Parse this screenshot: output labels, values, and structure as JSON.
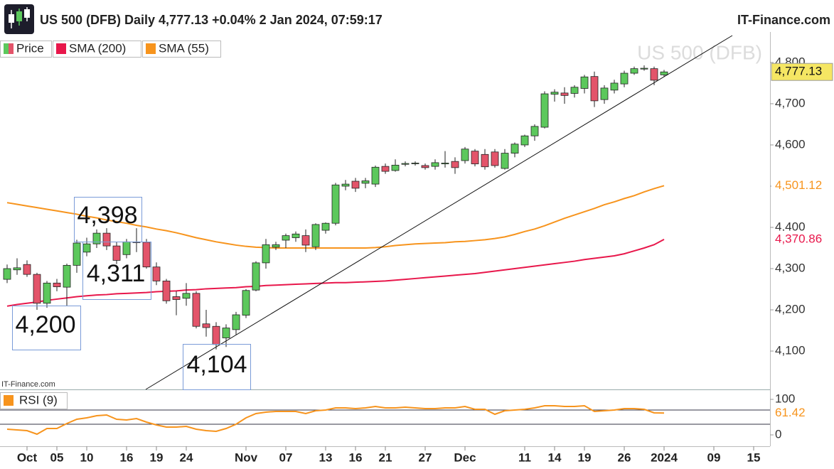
{
  "header": {
    "title": "US 500 (DFB) Daily 4,777.13 +0.04% 2 Jan 2024, 07:59:17",
    "brand": "IT-Finance.com"
  },
  "chart_data": [
    {
      "type": "candlestick",
      "watermark": "US 500 (DFB)",
      "source": "IT-Finance.com",
      "categories": [
        null,
        null,
        "Oct",
        null,
        null,
        "05",
        null,
        null,
        "10",
        null,
        null,
        null,
        "16",
        null,
        null,
        "19",
        null,
        null,
        "24",
        null,
        null,
        null,
        null,
        null,
        "Nov",
        null,
        null,
        null,
        "07",
        null,
        null,
        null,
        "13",
        null,
        null,
        "16",
        null,
        null,
        "21",
        null,
        null,
        null,
        "27",
        null,
        null,
        null,
        "Dec",
        null,
        null,
        null,
        null,
        null,
        "11",
        null,
        null,
        "14",
        null,
        null,
        "19",
        null,
        null,
        null,
        "26",
        null,
        null,
        null,
        "2024",
        null,
        null,
        null,
        null,
        "09",
        null,
        null,
        null,
        "15",
        null
      ],
      "series": [
        {
          "name": "Price",
          "type": "candlestick",
          "up_color": "#5cc85c",
          "down_color": "#e3546a",
          "color": "#f5e663",
          "value_label": "4,777.13",
          "open": [
            4274,
            4297,
            4310,
            4286,
            4216,
            4265,
            4255,
            4308,
            4340,
            4360,
            4386,
            4355,
            4334,
            4365,
            4364,
            4304,
            4270,
            4232,
            4228,
            4240,
            4166,
            4160,
            4132,
            4152,
            4187,
            4248,
            4314,
            4352,
            4369,
            4375,
            4380,
            4353,
            4393,
            4410,
            4500,
            4512,
            4507,
            4505,
            4548,
            4538,
            4553,
            4555,
            4550,
            4548,
            4554,
            4560,
            4562,
            4585,
            4577,
            4583,
            4543,
            4580,
            4600,
            4622,
            4643,
            4723,
            4726,
            4725,
            4737,
            4766,
            4710,
            4733,
            4748,
            4774,
            4784,
            4785,
            4770,
            null,
            null,
            null,
            null,
            null,
            null,
            null,
            null,
            null,
            null
          ],
          "high": [
            4310,
            4325,
            4320,
            4290,
            4270,
            4275,
            4312,
            4370,
            4375,
            4395,
            4398,
            4365,
            4372,
            4398,
            4372,
            4315,
            4275,
            4245,
            4265,
            4245,
            4200,
            4170,
            4165,
            4195,
            4250,
            4318,
            4372,
            4365,
            4385,
            4390,
            4395,
            4410,
            4412,
            4508,
            4515,
            4520,
            4520,
            4550,
            4555,
            4565,
            4560,
            4560,
            4555,
            4565,
            4585,
            4570,
            4595,
            4590,
            4590,
            4590,
            4590,
            4606,
            4625,
            4650,
            4730,
            4735,
            4740,
            4745,
            4770,
            4778,
            4745,
            4758,
            4780,
            4790,
            4793,
            4790,
            4782,
            null,
            null,
            null,
            null,
            null,
            null,
            null,
            null,
            null,
            null
          ],
          "low": [
            4265,
            4285,
            4280,
            4200,
            4205,
            4245,
            4210,
            4290,
            4330,
            4350,
            4345,
            4311,
            4325,
            4340,
            4300,
            4260,
            4215,
            4187,
            4210,
            4155,
            4135,
            4104,
            4110,
            4140,
            4180,
            4245,
            4300,
            4345,
            4350,
            4365,
            4340,
            4345,
            4385,
            4405,
            4490,
            4486,
            4495,
            4498,
            4530,
            4535,
            4548,
            4550,
            4540,
            4540,
            4545,
            4530,
            4555,
            4548,
            4540,
            4545,
            4540,
            4570,
            4595,
            4610,
            4640,
            4705,
            4700,
            4715,
            4725,
            4692,
            4700,
            4725,
            4740,
            4770,
            4780,
            4745,
            4765,
            null,
            null,
            null,
            null,
            null,
            null,
            null,
            null,
            null,
            null
          ],
          "close": [
            4300,
            4302,
            4286,
            4216,
            4265,
            4256,
            4308,
            4362,
            4360,
            4386,
            4355,
            4320,
            4365,
            4363,
            4304,
            4270,
            4222,
            4225,
            4240,
            4160,
            4157,
            4116,
            4156,
            4188,
            4247,
            4314,
            4358,
            4358,
            4380,
            4384,
            4357,
            4407,
            4410,
            4503,
            4505,
            4495,
            4513,
            4546,
            4536,
            4551,
            4555,
            4556,
            4545,
            4557,
            4556,
            4545,
            4590,
            4554,
            4547,
            4550,
            4580,
            4602,
            4622,
            4645,
            4724,
            4728,
            4720,
            4740,
            4765,
            4707,
            4738,
            4750,
            4774,
            4785,
            4786,
            4757,
            4777.13,
            null,
            null,
            null,
            null,
            null,
            null,
            null,
            null,
            null,
            null
          ]
        },
        {
          "name": "SMA (200)",
          "type": "line",
          "color": "#e8174b",
          "value_label": "4,370.86",
          "values": [
            4209,
            4213,
            4216,
            4219,
            4223,
            4226,
            4229,
            4232,
            4234,
            4236,
            4237,
            4239,
            4240,
            4241,
            4242,
            4244,
            4245,
            4246,
            4248,
            4249,
            4251,
            4252,
            4253,
            4254,
            4256,
            4257,
            4259,
            4260,
            4261,
            4262,
            4263,
            4264,
            4265,
            4266,
            4266,
            4267,
            4268,
            4269,
            4270,
            4272,
            4274,
            4276,
            4278,
            4280,
            4282,
            4284,
            4286,
            4288,
            4291,
            4294,
            4297,
            4300,
            4303,
            4306,
            4309,
            4312,
            4315,
            4318,
            4322,
            4325,
            4328,
            4331,
            4336,
            4343,
            4350,
            4358,
            4370.86,
            null,
            null,
            null,
            null,
            null,
            null,
            null,
            null,
            null,
            null
          ]
        },
        {
          "name": "SMA (55)",
          "type": "line",
          "color": "#f7941d",
          "value_label": "4,501.12",
          "values": [
            4460,
            4456,
            4452,
            4448,
            4444,
            4440,
            4436,
            4432,
            4427,
            4423,
            4418,
            4414,
            4410,
            4405,
            4401,
            4396,
            4392,
            4387,
            4381,
            4375,
            4370,
            4365,
            4361,
            4357,
            4354,
            4352,
            4351,
            4350,
            4350,
            4350,
            4350,
            4350,
            4350,
            4350,
            4350,
            4350,
            4350,
            4351,
            4353,
            4356,
            4358,
            4360,
            4361,
            4362,
            4363,
            4365,
            4366,
            4368,
            4370,
            4373,
            4377,
            4383,
            4390,
            4396,
            4404,
            4413,
            4422,
            4430,
            4438,
            4446,
            4455,
            4462,
            4470,
            4477,
            4486,
            4494,
            4501.12,
            null,
            null,
            null,
            null,
            null,
            null,
            null,
            null,
            null,
            null
          ]
        }
      ],
      "ylim": [
        4007,
        4874
      ],
      "yticks": [
        {
          "value": 4100,
          "label": "4,100"
        },
        {
          "value": 4200,
          "label": "4,200"
        },
        {
          "value": 4300,
          "label": "4,300"
        },
        {
          "value": 4400,
          "label": "4,400"
        },
        {
          "value": 4500,
          "label": "4,500"
        },
        {
          "value": 4600,
          "label": "4,600"
        },
        {
          "value": 4700,
          "label": "4,700"
        },
        {
          "value": 4800,
          "label": "4,800"
        }
      ],
      "annotations": [
        "4,398",
        "4,311",
        "4,200",
        "4,104"
      ]
    },
    {
      "type": "line",
      "series": [
        {
          "name": "RSI (9)",
          "color": "#f7941d",
          "value_label": "61.42",
          "values": [
            16,
            14,
            12,
            2,
            18,
            18,
            32,
            44,
            48,
            54,
            56,
            44,
            42,
            46,
            36,
            28,
            22,
            22,
            24,
            16,
            12,
            10,
            18,
            30,
            48,
            60,
            64,
            66,
            66,
            66,
            60,
            68,
            70,
            76,
            76,
            74,
            76,
            80,
            76,
            76,
            78,
            76,
            74,
            74,
            76,
            76,
            80,
            72,
            72,
            58,
            68,
            70,
            72,
            76,
            82,
            82,
            80,
            80,
            82,
            66,
            68,
            70,
            74,
            74,
            72,
            62,
            61.42,
            null,
            null,
            null,
            null,
            null,
            null,
            null,
            null,
            null,
            null
          ]
        }
      ],
      "ylim": [
        -32,
        124
      ],
      "yticks": [
        0,
        100
      ],
      "reference_lines": [
        30,
        70
      ]
    }
  ]
}
